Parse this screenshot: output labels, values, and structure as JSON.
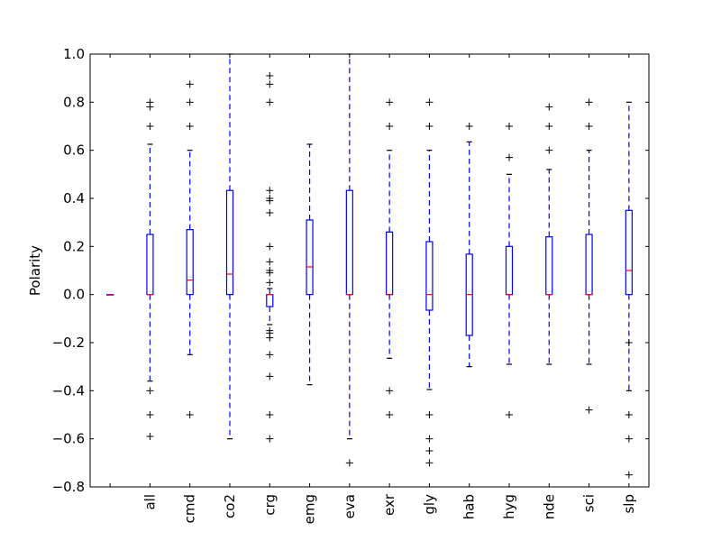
{
  "chart_data": {
    "type": "box",
    "title": "",
    "xlabel": "",
    "ylabel": "Polarity",
    "ylim": [
      -0.8,
      1.0
    ],
    "yticks": [
      -0.8,
      -0.6,
      -0.4,
      -0.2,
      0.0,
      0.2,
      0.4,
      0.6,
      0.8,
      1.0
    ],
    "ytick_labels": [
      "−0.8",
      "−0.6",
      "−0.4",
      "−0.2",
      "0.0",
      "0.2",
      "0.4",
      "0.6",
      "0.8",
      "1.0"
    ],
    "grid": false,
    "legend": "none",
    "categories": [
      "",
      "all",
      "cmd",
      "co2",
      "crg",
      "emg",
      "eva",
      "exr",
      "gly",
      "hab",
      "hyg",
      "nde",
      "sci",
      "slp"
    ],
    "boxes": [
      {
        "label": "",
        "q1": 0.0,
        "median": 0.0,
        "q3": 0.0,
        "whisker_low": 0.0,
        "whisker_high": 0.0,
        "outliers": []
      },
      {
        "label": "all",
        "q1": 0.0,
        "median": 0.0,
        "q3": 0.25,
        "whisker_low": -0.36,
        "whisker_high": 0.625,
        "outliers": [
          0.8,
          0.78,
          0.7,
          -0.4,
          -0.5,
          -0.59
        ]
      },
      {
        "label": "cmd",
        "q1": 0.0,
        "median": 0.06,
        "q3": 0.27,
        "whisker_low": -0.25,
        "whisker_high": 0.6,
        "outliers": [
          0.875,
          0.8,
          0.7,
          -0.5
        ]
      },
      {
        "label": "co2",
        "q1": 0.0,
        "median": 0.085,
        "q3": 0.433,
        "whisker_low": -0.6,
        "whisker_high": 1.0,
        "outliers": []
      },
      {
        "label": "crg",
        "q1": -0.05,
        "median": 0.0,
        "q3": 0.0,
        "whisker_low": -0.125,
        "whisker_high": 0.025,
        "outliers": [
          0.91,
          0.875,
          0.8,
          0.433,
          0.4,
          0.39,
          0.34,
          0.2,
          0.136,
          0.1,
          0.09,
          0.05,
          -0.15,
          -0.16,
          -0.18,
          -0.25,
          -0.34,
          -0.5,
          -0.6
        ]
      },
      {
        "label": "emg",
        "q1": 0.0,
        "median": 0.115,
        "q3": 0.31,
        "whisker_low": -0.375,
        "whisker_high": 0.625,
        "outliers": []
      },
      {
        "label": "eva",
        "q1": 0.0,
        "median": 0.0,
        "q3": 0.433,
        "whisker_low": -0.6,
        "whisker_high": 1.0,
        "outliers": [
          -0.7
        ]
      },
      {
        "label": "exr",
        "q1": 0.0,
        "median": 0.0,
        "q3": 0.26,
        "whisker_low": -0.265,
        "whisker_high": 0.6,
        "outliers": [
          0.8,
          0.7,
          -0.4,
          -0.5
        ]
      },
      {
        "label": "gly",
        "q1": -0.065,
        "median": 0.0,
        "q3": 0.22,
        "whisker_low": -0.395,
        "whisker_high": 0.6,
        "outliers": [
          0.8,
          0.7,
          -0.5,
          -0.6,
          -0.65,
          -0.7
        ]
      },
      {
        "label": "hab",
        "q1": -0.17,
        "median": 0.0,
        "q3": 0.168,
        "whisker_low": -0.3,
        "whisker_high": 0.635,
        "outliers": [
          0.7
        ]
      },
      {
        "label": "hyg",
        "q1": 0.0,
        "median": 0.0,
        "q3": 0.2,
        "whisker_low": -0.29,
        "whisker_high": 0.5,
        "outliers": [
          0.7,
          0.57,
          -0.5
        ]
      },
      {
        "label": "nde",
        "q1": 0.0,
        "median": 0.0,
        "q3": 0.24,
        "whisker_low": -0.29,
        "whisker_high": 0.52,
        "outliers": [
          0.78,
          0.7,
          0.6
        ]
      },
      {
        "label": "sci",
        "q1": 0.0,
        "median": 0.0,
        "q3": 0.25,
        "whisker_low": -0.29,
        "whisker_high": 0.6,
        "outliers": [
          0.8,
          0.7,
          -0.48
        ]
      },
      {
        "label": "slp",
        "q1": 0.0,
        "median": 0.1,
        "q3": 0.35,
        "whisker_low": -0.4,
        "whisker_high": 0.8,
        "outliers": [
          -0.2,
          -0.5,
          -0.6,
          -0.75
        ]
      }
    ],
    "colors": {
      "box": "#0000ff",
      "whisker": "#0000ff",
      "median": "#ff0000",
      "cap": "#000000",
      "outlier": "#000000",
      "axis": "#000000",
      "background": "#ffffff"
    }
  }
}
